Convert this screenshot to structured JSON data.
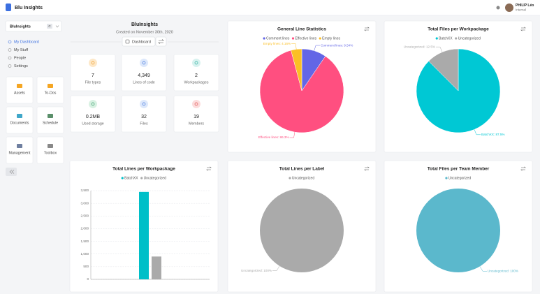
{
  "header": {
    "app_name": "Blu Insights",
    "user_name": "PHILIP Léo",
    "user_role": "Internal"
  },
  "sidebar": {
    "project": "BluInsights",
    "project_badge": "C",
    "nav": [
      "My Dashboard",
      "My Stuff",
      "People",
      "Settings"
    ],
    "tiles": [
      "Assets",
      "To-Dos",
      "Documents",
      "Schedule",
      "Management",
      "Toolbox"
    ]
  },
  "project": {
    "name": "BluInsights",
    "created": "Created on November 30th, 2020",
    "button": "Dashboard",
    "stats": [
      {
        "value": "7",
        "label": "File types"
      },
      {
        "value": "4,349",
        "label": "Lines of code"
      },
      {
        "value": "2",
        "label": "Workpackages"
      },
      {
        "value": "0.2MB",
        "label": "Used storage"
      },
      {
        "value": "32",
        "label": "Files"
      },
      {
        "value": "19",
        "label": "Members"
      }
    ]
  },
  "chart_data": [
    {
      "type": "pie",
      "title": "General Line Statistics",
      "categories": [
        "Comment lines",
        "Effective lines",
        "Empty lines"
      ],
      "values": [
        9.54,
        86.3,
        4.16
      ],
      "value_labels": [
        "Comment lines: 9.54%",
        "Effective lines: 86.3%",
        "Empty lines: 4.16%"
      ],
      "colors": [
        "#6366e6",
        "#ff4f80",
        "#fbbf24"
      ]
    },
    {
      "type": "pie",
      "title": "Total Files per Workpackage",
      "categories": [
        "BatchXX",
        "Uncategorized"
      ],
      "values": [
        87.5,
        12.5
      ],
      "value_labels": [
        "BatchXX: 87.5%",
        "Uncategorized: 12.5%"
      ],
      "colors": [
        "#00c8d4",
        "#aaaaaa"
      ]
    },
    {
      "type": "bar",
      "title": "Total Lines per Workpackage",
      "categories": [
        null
      ],
      "series": [
        {
          "name": "BatchXX",
          "color": "#00bfc8",
          "values": [
            3450
          ]
        },
        {
          "name": "Uncategorized",
          "color": "#aaaaaa",
          "values": [
            900
          ]
        }
      ],
      "ylim": [
        0,
        3500
      ],
      "yticks": [
        0,
        500,
        {
          "value": 1000,
          "label": "1,000"
        },
        {
          "value": 1500,
          "label": "1,500"
        },
        {
          "value": 2000,
          "label": "2,000"
        },
        {
          "value": 2500,
          "label": "2,500"
        },
        {
          "value": 3000,
          "label": "3,000"
        },
        {
          "value": 3500,
          "label": "3,500"
        }
      ],
      "grid": true
    },
    {
      "type": "pie",
      "title": "Total Lines per Label",
      "categories": [
        "Uncategorized"
      ],
      "values": [
        100
      ],
      "value_labels": [
        "Uncategorized: 100%"
      ],
      "colors": [
        "#aaaaaa"
      ]
    },
    {
      "type": "pie",
      "title": "Total Files per Team Member",
      "categories": [
        "Uncategorized"
      ],
      "values": [
        100
      ],
      "value_labels": [
        "Uncategorized: 100%"
      ],
      "colors": [
        "#5bb8cc"
      ]
    }
  ]
}
